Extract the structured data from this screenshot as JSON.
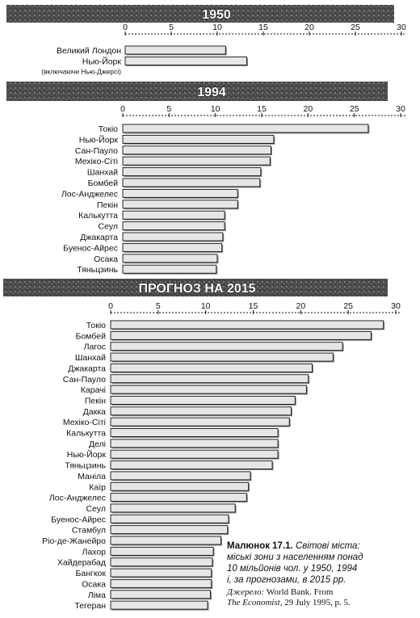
{
  "chart_data": [
    {
      "type": "bar",
      "title": "1950",
      "xlim": [
        0,
        30
      ],
      "ticks": [
        0,
        5,
        10,
        15,
        20,
        25,
        30
      ],
      "categories": [
        "Великий Лондон",
        "Нью-Йорк"
      ],
      "notes": [
        "",
        "(включаючи Нью-Джерсі)"
      ],
      "values": [
        10.9,
        13.2
      ]
    },
    {
      "type": "bar",
      "title": "1994",
      "xlim": [
        0,
        30
      ],
      "ticks": [
        0,
        5,
        10,
        15,
        20,
        25,
        30
      ],
      "categories": [
        "Токіо",
        "Нью-Йорк",
        "Сан-Пауло",
        "Мехіко-Сіті",
        "Шанхай",
        "Бомбей",
        "Лос-Анджелес",
        "Пекін",
        "Калькутта",
        "Сеул",
        "Джакарта",
        "Буенос-Айрес",
        "Осака",
        "Тяньцзинь"
      ],
      "values": [
        26.5,
        16.3,
        16.0,
        15.9,
        14.9,
        14.8,
        12.4,
        12.4,
        11.0,
        11.0,
        10.8,
        10.7,
        10.2,
        10.1
      ]
    },
    {
      "type": "bar",
      "title": "ПРОГНОЗ НА 2015",
      "xlim": [
        0,
        30
      ],
      "ticks": [
        0,
        5,
        10,
        15,
        20,
        25,
        30
      ],
      "categories": [
        "Токіо",
        "Бомбей",
        "Лагос",
        "Шанхай",
        "Джакарта",
        "Сан-Пауло",
        "Карачі",
        "Пекін",
        "Дакка",
        "Мехіко-Сіті",
        "Калькутта",
        "Делі",
        "Нью-Йорк",
        "Тяньцзинь",
        "Маніла",
        "Каїр",
        "Лос-Анджелес",
        "Сеул",
        "Буенос-Айрес",
        "Стамбул",
        "Ріо-де-Жанейро",
        "Лахор",
        "Хайдерабад",
        "Бангкок",
        "Осака",
        "Ліма",
        "Тегеран"
      ],
      "values": [
        28.7,
        27.4,
        24.4,
        23.4,
        21.2,
        20.8,
        20.6,
        19.4,
        19.0,
        18.8,
        17.6,
        17.6,
        17.6,
        17.0,
        14.7,
        14.5,
        14.3,
        13.1,
        12.4,
        12.3,
        11.6,
        10.8,
        10.7,
        10.6,
        10.6,
        10.5,
        10.2
      ]
    }
  ],
  "caption": {
    "title": "Малюнок 17.1.",
    "line1": "Світові міста:",
    "line2": "міські зони з населенням понад",
    "line3": "10 мільйонів чол. у 1950, 1994",
    "line4": "і, за прогнозами, в 2015 рр."
  },
  "source": {
    "label": "Джерело:",
    "text1": "World Bank. From",
    "journal": "The Economist,",
    "text2": "29 July 1995, p. 5."
  },
  "colors": {
    "bar_fill": "#e6e6e6",
    "bar_stroke": "#111111",
    "band_fill": "#555555"
  }
}
